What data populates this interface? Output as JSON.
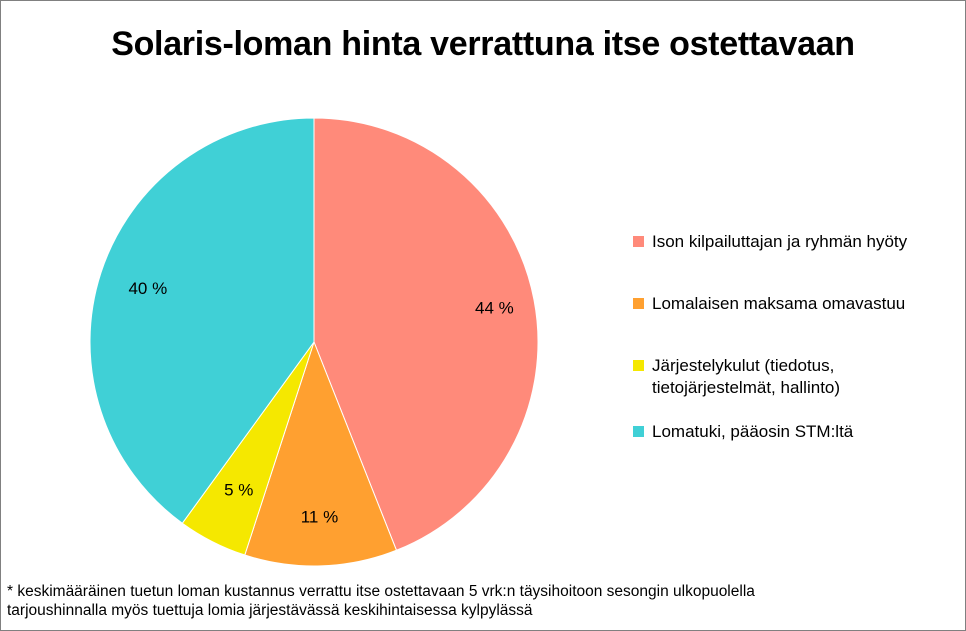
{
  "chart_data": {
    "type": "pie",
    "title": "Solaris-loman hinta verrattuna itse ostettavaan",
    "slices": [
      {
        "label": "Ison kilpailuttajan ja ryhmän hyöty",
        "value": 44,
        "display": "44 %",
        "color": "#FF8A7A"
      },
      {
        "label": "Lomalaisen maksama omavastuu",
        "value": 11,
        "display": "11 %",
        "color": "#FFA030"
      },
      {
        "label": "Järjestelykulut (tiedotus, tietojärjestelmät, hallinto)",
        "value": 5,
        "display": "5 %",
        "color": "#F5E800"
      },
      {
        "label": "Lomatuki, pääosin STM:ltä",
        "value": 40,
        "display": "40 %",
        "color": "#40D0D6"
      }
    ],
    "legend_position": "right",
    "start": "top, clockwise"
  },
  "legend": {
    "items": [
      {
        "label": "Ison kilpailuttajan ja ryhmän hyöty",
        "color": "#FF8A7A"
      },
      {
        "label": "Lomalaisen maksama omavastuu",
        "color": "#FFA030"
      },
      {
        "label": "Järjestelykulut (tiedotus, tietojärjestelmät, hallinto)",
        "color": "#F5E800"
      },
      {
        "label": "Lomatuki, pääosin STM:ltä",
        "color": "#40D0D6"
      }
    ]
  },
  "footnote": "* keskimääräinen tuetun loman kustannus verrattu itse ostettavaan 5 vrk:n täysihoitoon sesongin ulkopuolella\n   tarjoushinnalla myös tuettuja lomia järjestävässä keskihintaisessa kylpylässä"
}
